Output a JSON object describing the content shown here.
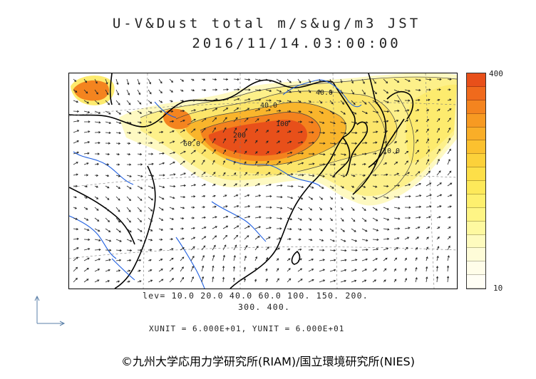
{
  "title": {
    "line1": "U-V&Dust total m/s&ug/m3 JST",
    "line2": "2016/11/14.03:00:00"
  },
  "colorbar": {
    "max_label": "400",
    "min_label": "10",
    "colors": [
      "#e8501a",
      "#f06a1c",
      "#f4841f",
      "#f79a22",
      "#f9ae28",
      "#fbc12f",
      "#fcd13a",
      "#fddf48",
      "#fde95a",
      "#fef06e",
      "#fef585",
      "#fef9a0",
      "#fefbbe",
      "#fefcd8",
      "#fffde9",
      "#fffef5"
    ]
  },
  "legend": {
    "lev_line1": "lev= 10.0 20.0 40.0 60.0 100. 150. 200.",
    "lev_line2": "300. 400."
  },
  "units": "XUNIT = 6.000E+01, YUNIT = 6.000E+01",
  "map": {
    "contour_labels": [
      "40.0",
      "40.0",
      "100",
      "60.0",
      "200",
      "10.0"
    ]
  },
  "copyright": "©九州大学応用力学研究所(RIAM)/国立環境研究所(NIES)"
}
